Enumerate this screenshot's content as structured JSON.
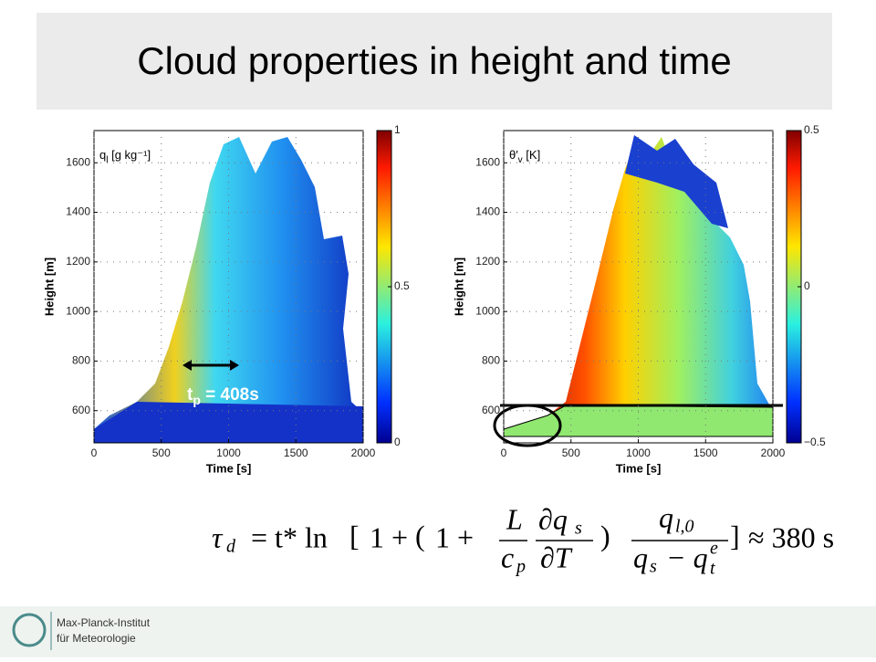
{
  "title": "Cloud properties in height and time",
  "panels": [
    {
      "label": "q",
      "label_sub": "l",
      "label_rest": " [g kg⁻¹]",
      "xlabel": "Time [s]",
      "ylabel": "Height [m]",
      "xlim": [
        0,
        2000
      ],
      "xticks": [
        0,
        500,
        1000,
        1500,
        2000
      ],
      "ylim": [
        470,
        1730
      ],
      "yticks": [
        600,
        800,
        1000,
        1200,
        1400,
        1600
      ],
      "clim": [
        0,
        1
      ],
      "cticks": [
        0,
        0.5,
        1
      ]
    },
    {
      "label": "θ′",
      "label_sub": "v",
      "label_rest": " [K]",
      "xlabel": "Time [s]",
      "ylabel": "Height [m]",
      "xlim": [
        0,
        2000
      ],
      "xticks": [
        0,
        500,
        1000,
        1500,
        2000
      ],
      "ylim": [
        470,
        1730
      ],
      "yticks": [
        600,
        800,
        1000,
        1200,
        1400,
        1600
      ],
      "clim": [
        -0.5,
        0.5
      ],
      "cticks": [
        {
          "value": -0.5,
          "label": "−0.5"
        },
        0,
        0.5
      ]
    }
  ],
  "annotation": {
    "t": "t",
    "sub": "p",
    "rest": " = 408s"
  },
  "equation": [
    "τ",
    "d",
    "= t* ln",
    "[",
    "1 +",
    "(",
    "1 +",
    "L",
    "c",
    "p",
    "∂q",
    "s",
    "∂T",
    ")",
    "q",
    "l,0",
    "q",
    "s",
    "− q",
    "t",
    "e",
    "]",
    "≈ 380 s"
  ],
  "footer": {
    "line1": "Max-Planck-Institut",
    "line2": "für Meteorologie"
  }
}
